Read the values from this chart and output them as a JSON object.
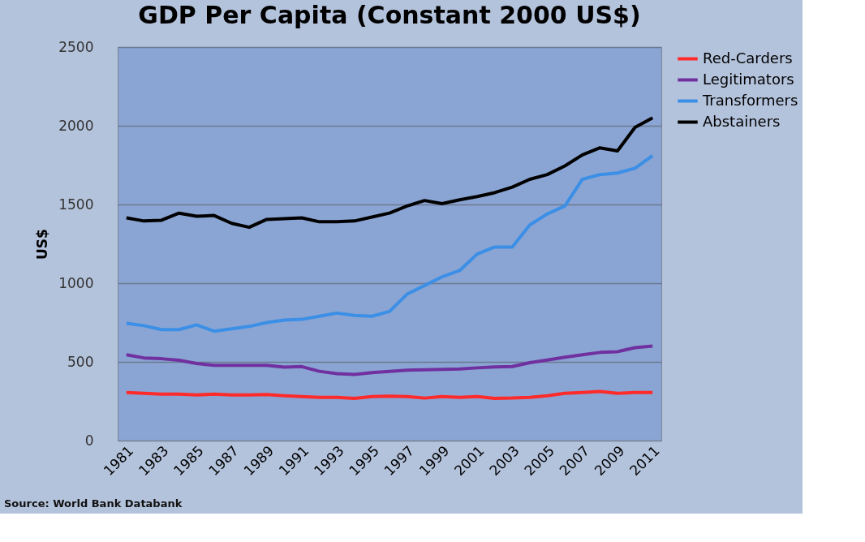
{
  "chart_data": {
    "type": "line",
    "title": "GDP Per Capita (Constant 2000 US$)",
    "ylabel": "US$",
    "categories": [
      "1981",
      null,
      "1983",
      null,
      "1985",
      null,
      "1987",
      null,
      "1989",
      null,
      "1991",
      null,
      "1993",
      null,
      "1995",
      null,
      "1997",
      null,
      "1999",
      null,
      "2001",
      null,
      "2003",
      null,
      "2005",
      null,
      "2007",
      null,
      "2009",
      null,
      "2011"
    ],
    "series": [
      {
        "name": "Red-Carders",
        "color": "#ff2a2a",
        "values": [
          305,
          300,
          295,
          295,
          290,
          295,
          290,
          290,
          292,
          285,
          280,
          275,
          275,
          268,
          280,
          282,
          280,
          270,
          280,
          275,
          280,
          268,
          270,
          275,
          285,
          300,
          305,
          312,
          300,
          305,
          305
        ]
      },
      {
        "name": "Legitimators",
        "color": "#7030a0",
        "values": [
          545,
          525,
          520,
          510,
          490,
          478,
          478,
          478,
          478,
          466,
          470,
          440,
          425,
          420,
          432,
          440,
          447,
          450,
          452,
          455,
          462,
          468,
          470,
          495,
          512,
          530,
          545,
          560,
          565,
          590,
          600
        ]
      },
      {
        "name": "Transformers",
        "color": "#3b8fe6",
        "values": [
          745,
          730,
          705,
          705,
          735,
          695,
          710,
          725,
          750,
          765,
          770,
          790,
          810,
          795,
          790,
          820,
          930,
          985,
          1040,
          1080,
          1185,
          1230,
          1230,
          1370,
          1440,
          1490,
          1660,
          1690,
          1700,
          1730,
          1810
        ]
      },
      {
        "name": "Abstainers",
        "color": "#000000",
        "values": [
          1415,
          1395,
          1400,
          1445,
          1425,
          1430,
          1380,
          1355,
          1405,
          1410,
          1415,
          1390,
          1390,
          1395,
          1420,
          1445,
          1490,
          1525,
          1505,
          1530,
          1550,
          1575,
          1610,
          1660,
          1690,
          1745,
          1815,
          1860,
          1840,
          1990,
          2050
        ]
      }
    ],
    "ylim": [
      0,
      2500
    ],
    "yticks": [
      0,
      500,
      1000,
      1500,
      2000,
      2500
    ],
    "grid": "y",
    "legend": "right",
    "marker": "none",
    "line_style": "solid",
    "annotations": [
      "Source: World Bank Databank"
    ]
  }
}
